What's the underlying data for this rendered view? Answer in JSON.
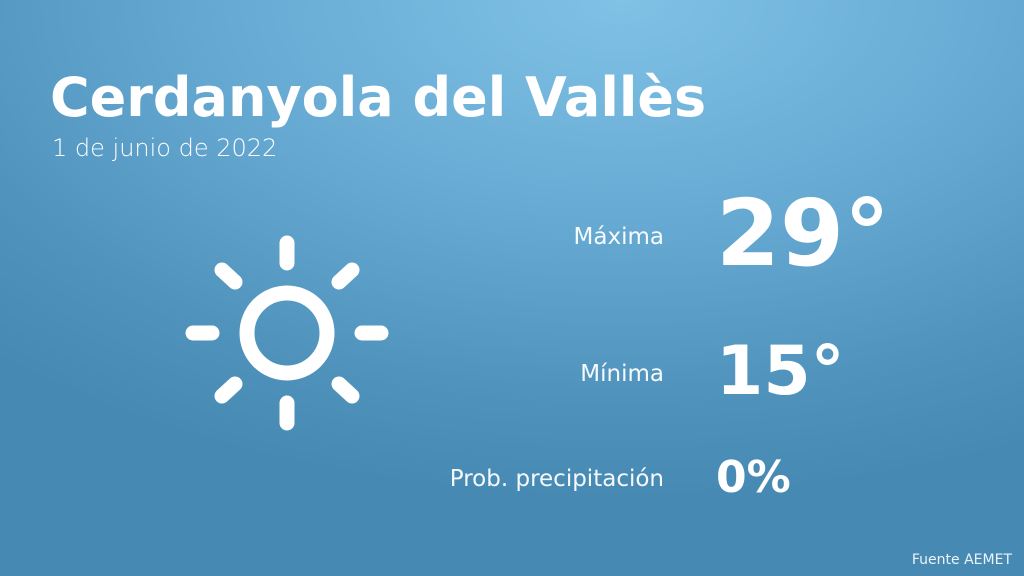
{
  "location": "Cerdanyola del Vallès",
  "date": "1 de junio de 2022",
  "weather_icon": "sun-icon",
  "max": {
    "label": "Máxima",
    "value": "29°"
  },
  "min": {
    "label": "Mínima",
    "value": "15°"
  },
  "precip": {
    "label": "Prob. precipitación",
    "value": "0%"
  },
  "source": "Fuente AEMET",
  "colors": {
    "bg_top": "#80c2e6",
    "bg_bottom": "#468ab4",
    "text": "#ffffff"
  }
}
